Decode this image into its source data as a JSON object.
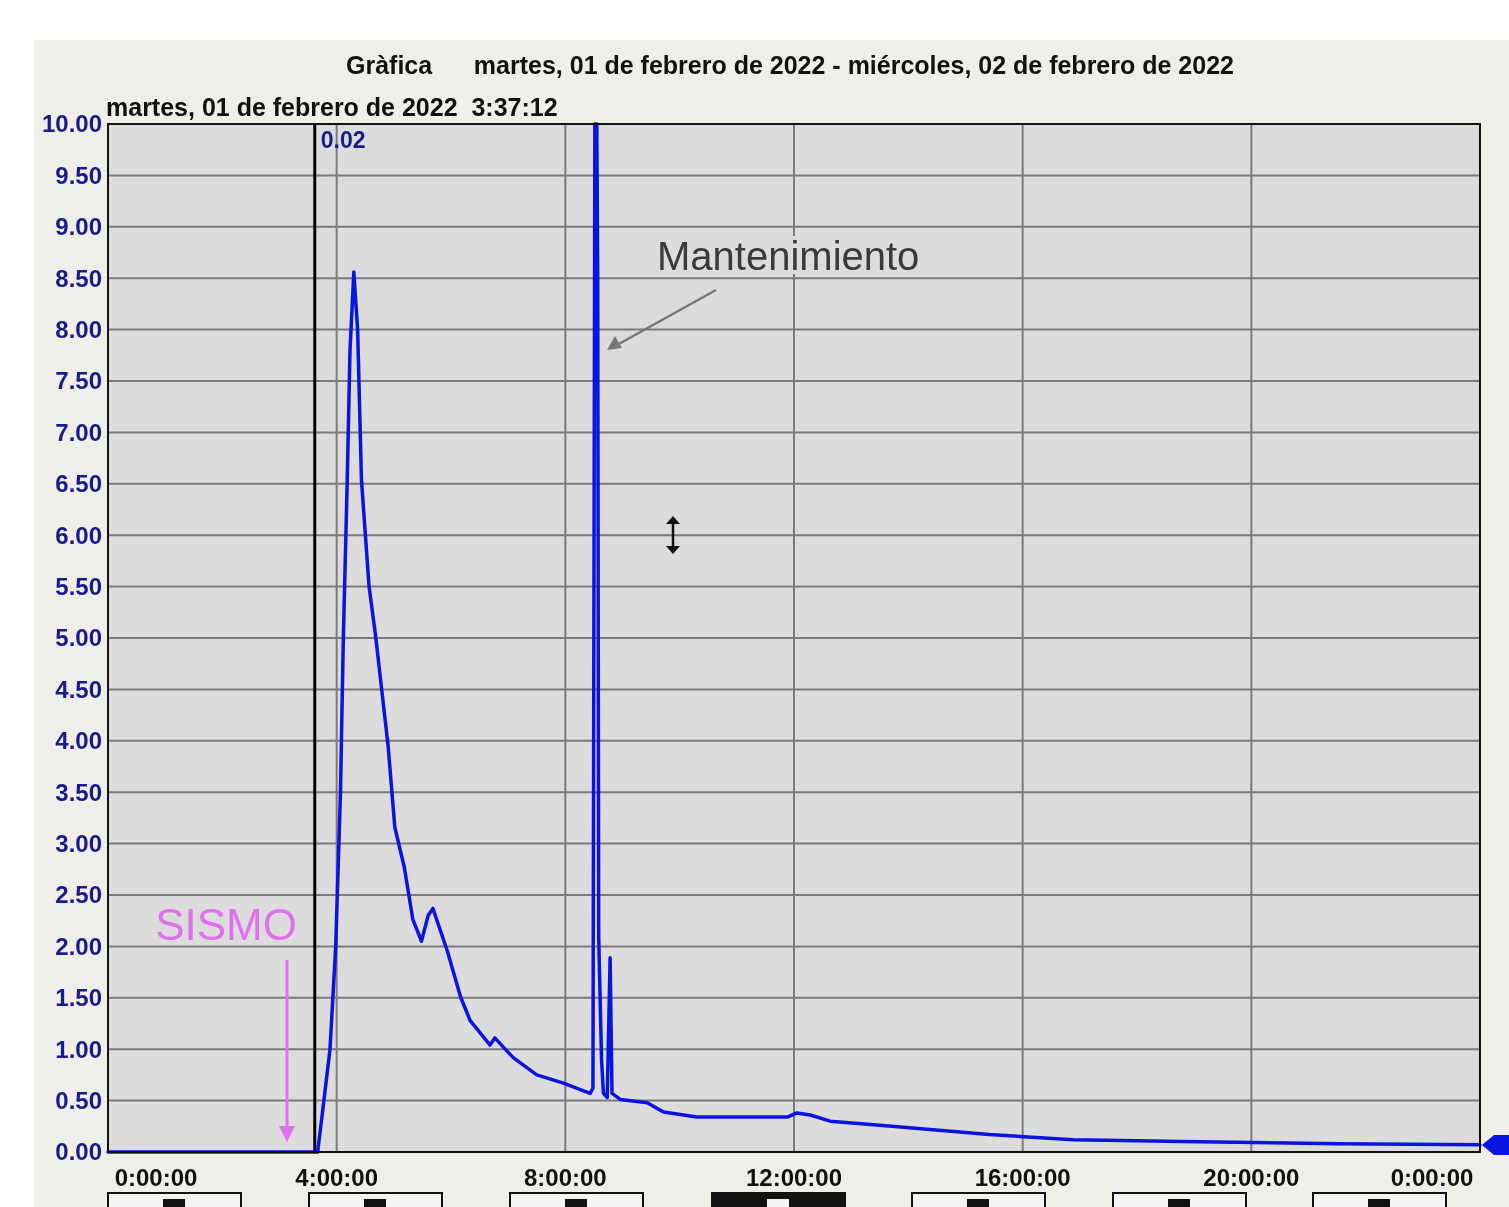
{
  "chart_data": {
    "type": "line",
    "title": "Gràfica      martes, 01 de febrero de 2022 - miércoles, 02 de febrero de 2022",
    "subtitle": "martes, 01 de febrero de 2022  3:37:12",
    "series": [
      {
        "color": "#0a14e0",
        "x": [
          "2022-02-01T00:00",
          "2022-02-01T03:37",
          "2022-02-01T03:40",
          "2022-02-01T03:44",
          "2022-02-01T03:53",
          "2022-02-01T03:59",
          "2022-02-01T04:04",
          "2022-02-01T04:07",
          "2022-02-01T04:11",
          "2022-02-01T04:14",
          "2022-02-01T04:18",
          "2022-02-01T04:22",
          "2022-02-01T04:26",
          "2022-02-01T04:34",
          "2022-02-01T04:41",
          "2022-02-01T04:47",
          "2022-02-01T04:54",
          "2022-02-01T05:01",
          "2022-02-01T05:11",
          "2022-02-01T05:20",
          "2022-02-01T05:29",
          "2022-02-01T05:36",
          "2022-02-01T05:41",
          "2022-02-01T05:49",
          "2022-02-01T05:56",
          "2022-02-01T06:10",
          "2022-02-01T06:20",
          "2022-02-01T06:41",
          "2022-02-01T06:46",
          "2022-02-01T07:05",
          "2022-02-01T07:30",
          "2022-02-01T07:58",
          "2022-02-01T08:26",
          "2022-02-01T08:29",
          "2022-02-01T08:31",
          "2022-02-01T08:33",
          "2022-02-01T08:34",
          "2022-02-01T08:35",
          "2022-02-01T08:38",
          "2022-02-01T08:40",
          "2022-02-01T08:44",
          "2022-02-01T08:47",
          "2022-02-01T08:49",
          "2022-02-01T08:58",
          "2022-02-01T09:26",
          "2022-02-01T09:43",
          "2022-02-01T10:18",
          "2022-02-01T11:11",
          "2022-02-01T11:53",
          "2022-02-01T12:03",
          "2022-02-01T12:17",
          "2022-02-01T12:38",
          "2022-02-01T13:30",
          "2022-02-01T15:25",
          "2022-02-01T16:53",
          "2022-02-01T19:05",
          "2022-02-01T21:32",
          "2022-02-02T00:00"
        ],
        "values": [
          0,
          0,
          0,
          0.3,
          1,
          2,
          3.5,
          5,
          6.5,
          7.8,
          8.56,
          8,
          6.54,
          5.5,
          5.01,
          4.52,
          3.95,
          3.16,
          2.77,
          2.26,
          2.05,
          2.3,
          2.37,
          2.15,
          1.96,
          1.51,
          1.28,
          1.04,
          1.11,
          0.92,
          0.75,
          0.67,
          0.57,
          0.62,
          10,
          10,
          8.5,
          2.1,
          0.9,
          0.57,
          0.53,
          1.89,
          0.57,
          0.51,
          0.48,
          0.39,
          0.34,
          0.34,
          0.34,
          0.38,
          0.36,
          0.3,
          0.26,
          0.17,
          0.12,
          0.1,
          0.08,
          0.07
        ]
      }
    ],
    "xlim": [
      "2022-02-01T00:00",
      "2022-02-02T00:00"
    ],
    "ylim": [
      0,
      10
    ],
    "xticks": [
      {
        "value": "2022-02-01T00:00",
        "label": "0:00:00"
      },
      {
        "value": "2022-02-01T04:00",
        "label": "4:00:00"
      },
      {
        "value": "2022-02-01T08:00",
        "label": "8:00:00"
      },
      {
        "value": "2022-02-01T12:00",
        "label": "12:00:00"
      },
      {
        "value": "2022-02-01T16:00",
        "label": "16:00:00"
      },
      {
        "value": "2022-02-01T20:00",
        "label": "20:00:00"
      },
      {
        "value": "2022-02-02T00:00",
        "label": "0:00:00"
      }
    ],
    "yticks": [
      {
        "value": 0,
        "label": "0.00"
      },
      {
        "value": 0.5,
        "label": "0.50"
      },
      {
        "value": 1,
        "label": "1.00"
      },
      {
        "value": 1.5,
        "label": "1.50"
      },
      {
        "value": 2,
        "label": "2.00"
      },
      {
        "value": 2.5,
        "label": "2.50"
      },
      {
        "value": 3,
        "label": "3.00"
      },
      {
        "value": 3.5,
        "label": "3.50"
      },
      {
        "value": 4,
        "label": "4.00"
      },
      {
        "value": 4.5,
        "label": "4.50"
      },
      {
        "value": 5,
        "label": "5.00"
      },
      {
        "value": 5.5,
        "label": "5.50"
      },
      {
        "value": 6,
        "label": "6.00"
      },
      {
        "value": 6.5,
        "label": "6.50"
      },
      {
        "value": 7,
        "label": "7.00"
      },
      {
        "value": 7.5,
        "label": "7.50"
      },
      {
        "value": 8,
        "label": "8.00"
      },
      {
        "value": 8.5,
        "label": "8.50"
      },
      {
        "value": 9,
        "label": "9.00"
      },
      {
        "value": 9.5,
        "label": "9.50"
      },
      {
        "value": 10,
        "label": "10.00"
      }
    ],
    "grid": true,
    "ref_lines": [
      {
        "axis": "x",
        "value": "2022-02-01T03:37",
        "color": "#000000"
      }
    ],
    "annotations": [
      "SISMO",
      "Mantenimiento",
      "0.02"
    ]
  }
}
